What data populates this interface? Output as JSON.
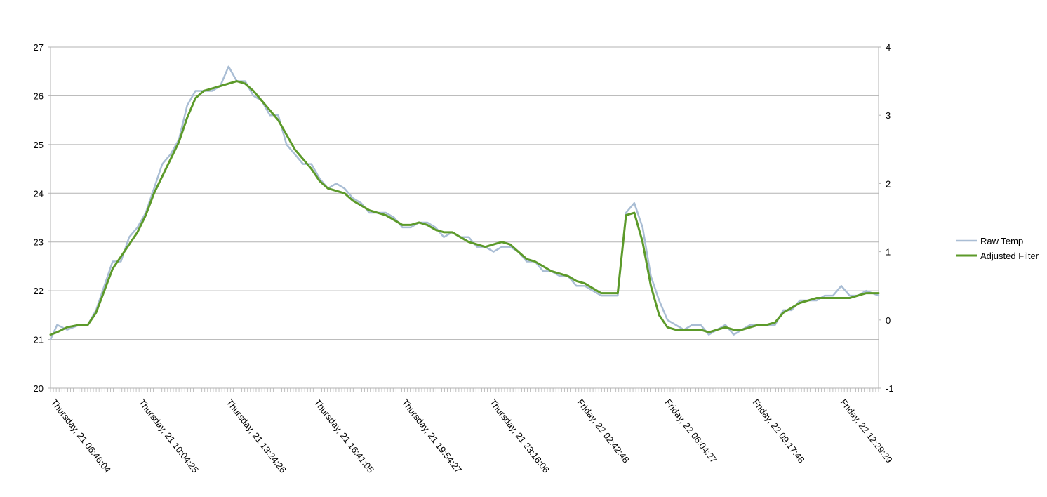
{
  "chart_data": {
    "type": "line",
    "title": "",
    "xlabel": "",
    "ylabel": "",
    "y_left": {
      "min": 20,
      "max": 27,
      "ticks": [
        20,
        21,
        22,
        23,
        24,
        25,
        26,
        27
      ]
    },
    "y_right": {
      "min": -1,
      "max": 4,
      "ticks": [
        -1,
        0,
        1,
        2,
        3,
        4
      ]
    },
    "grid": "horizontal",
    "legend_position": "right",
    "x_tick_labels": [
      "Thursday, 21 06:46:04",
      "Thursday, 21 10:04:25",
      "Thursday, 21 13:24:26",
      "Thursday, 21 16:41:05",
      "Thursday, 21 19:54:27",
      "Thursday, 21 23:16:06",
      "Friday, 22 02:42:48",
      "Friday, 22 06:04:27",
      "Friday, 22 09:17:48",
      "Friday, 22 12:29:29"
    ],
    "x_range": [
      0,
      1
    ],
    "series": [
      {
        "name": "Raw Temp",
        "color": "#a9bdd4",
        "axis": "left",
        "x": [
          0,
          0.008,
          0.02,
          0.035,
          0.045,
          0.055,
          0.065,
          0.075,
          0.085,
          0.095,
          0.105,
          0.115,
          0.125,
          0.135,
          0.145,
          0.155,
          0.165,
          0.175,
          0.185,
          0.195,
          0.205,
          0.215,
          0.225,
          0.235,
          0.245,
          0.255,
          0.265,
          0.275,
          0.285,
          0.295,
          0.305,
          0.315,
          0.325,
          0.335,
          0.345,
          0.355,
          0.365,
          0.375,
          0.385,
          0.395,
          0.405,
          0.415,
          0.425,
          0.435,
          0.445,
          0.455,
          0.465,
          0.475,
          0.485,
          0.495,
          0.505,
          0.515,
          0.525,
          0.535,
          0.545,
          0.555,
          0.565,
          0.575,
          0.585,
          0.595,
          0.605,
          0.615,
          0.625,
          0.635,
          0.645,
          0.655,
          0.665,
          0.675,
          0.685,
          0.695,
          0.705,
          0.715,
          0.725,
          0.735,
          0.745,
          0.755,
          0.765,
          0.775,
          0.785,
          0.795,
          0.805,
          0.815,
          0.825,
          0.835,
          0.845,
          0.855,
          0.865,
          0.875,
          0.885,
          0.895,
          0.905,
          0.915,
          0.925,
          0.935,
          0.945,
          0.955,
          0.965,
          0.975,
          0.985,
          1.0
        ],
        "values": [
          21.0,
          21.3,
          21.2,
          21.3,
          21.3,
          21.6,
          22.1,
          22.6,
          22.6,
          23.1,
          23.3,
          23.6,
          24.1,
          24.6,
          24.8,
          25.1,
          25.8,
          26.1,
          26.1,
          26.1,
          26.2,
          26.6,
          26.3,
          26.3,
          26.0,
          25.9,
          25.6,
          25.6,
          25.0,
          24.8,
          24.6,
          24.6,
          24.3,
          24.1,
          24.2,
          24.1,
          23.9,
          23.8,
          23.6,
          23.6,
          23.6,
          23.5,
          23.3,
          23.3,
          23.4,
          23.4,
          23.3,
          23.1,
          23.2,
          23.1,
          23.1,
          22.9,
          22.9,
          22.8,
          22.9,
          22.9,
          22.8,
          22.6,
          22.6,
          22.4,
          22.4,
          22.3,
          22.3,
          22.1,
          22.1,
          22.0,
          21.9,
          21.9,
          21.9,
          23.6,
          23.8,
          23.3,
          22.3,
          21.8,
          21.4,
          21.3,
          21.2,
          21.3,
          21.3,
          21.1,
          21.2,
          21.3,
          21.1,
          21.2,
          21.3,
          21.3,
          21.3,
          21.3,
          21.6,
          21.6,
          21.8,
          21.8,
          21.8,
          21.9,
          21.9,
          22.1,
          21.9,
          21.9,
          22.0,
          21.9
        ]
      },
      {
        "name": "Adjusted Filter",
        "color": "#5c9a2a",
        "axis": "left",
        "x": [
          0,
          0.008,
          0.02,
          0.035,
          0.045,
          0.055,
          0.065,
          0.075,
          0.085,
          0.095,
          0.105,
          0.115,
          0.125,
          0.135,
          0.145,
          0.155,
          0.165,
          0.175,
          0.185,
          0.195,
          0.205,
          0.215,
          0.225,
          0.235,
          0.245,
          0.255,
          0.265,
          0.275,
          0.285,
          0.295,
          0.305,
          0.315,
          0.325,
          0.335,
          0.345,
          0.355,
          0.365,
          0.375,
          0.385,
          0.395,
          0.405,
          0.415,
          0.425,
          0.435,
          0.445,
          0.455,
          0.465,
          0.475,
          0.485,
          0.495,
          0.505,
          0.515,
          0.525,
          0.535,
          0.545,
          0.555,
          0.565,
          0.575,
          0.585,
          0.595,
          0.605,
          0.615,
          0.625,
          0.635,
          0.645,
          0.655,
          0.665,
          0.675,
          0.685,
          0.695,
          0.705,
          0.715,
          0.725,
          0.735,
          0.745,
          0.755,
          0.765,
          0.775,
          0.785,
          0.795,
          0.805,
          0.815,
          0.825,
          0.835,
          0.845,
          0.855,
          0.865,
          0.875,
          0.885,
          0.895,
          0.905,
          0.915,
          0.925,
          0.935,
          0.945,
          0.955,
          0.965,
          0.975,
          0.985,
          1.0
        ],
        "values": [
          21.1,
          21.15,
          21.25,
          21.3,
          21.3,
          21.55,
          22.0,
          22.45,
          22.7,
          22.95,
          23.2,
          23.55,
          24.0,
          24.35,
          24.7,
          25.05,
          25.55,
          25.95,
          26.1,
          26.15,
          26.2,
          26.25,
          26.3,
          26.25,
          26.1,
          25.9,
          25.7,
          25.5,
          25.2,
          24.9,
          24.7,
          24.5,
          24.25,
          24.1,
          24.05,
          24.0,
          23.85,
          23.75,
          23.65,
          23.6,
          23.55,
          23.45,
          23.35,
          23.35,
          23.4,
          23.35,
          23.25,
          23.2,
          23.2,
          23.1,
          23.0,
          22.95,
          22.9,
          22.95,
          23.0,
          22.95,
          22.8,
          22.65,
          22.6,
          22.5,
          22.4,
          22.35,
          22.3,
          22.2,
          22.15,
          22.05,
          21.95,
          21.95,
          21.95,
          23.55,
          23.6,
          23.0,
          22.1,
          21.5,
          21.25,
          21.2,
          21.2,
          21.2,
          21.2,
          21.15,
          21.2,
          21.25,
          21.2,
          21.2,
          21.25,
          21.3,
          21.3,
          21.35,
          21.55,
          21.65,
          21.75,
          21.8,
          21.85,
          21.85,
          21.85,
          21.85,
          21.85,
          21.9,
          21.95,
          21.95
        ]
      }
    ]
  }
}
